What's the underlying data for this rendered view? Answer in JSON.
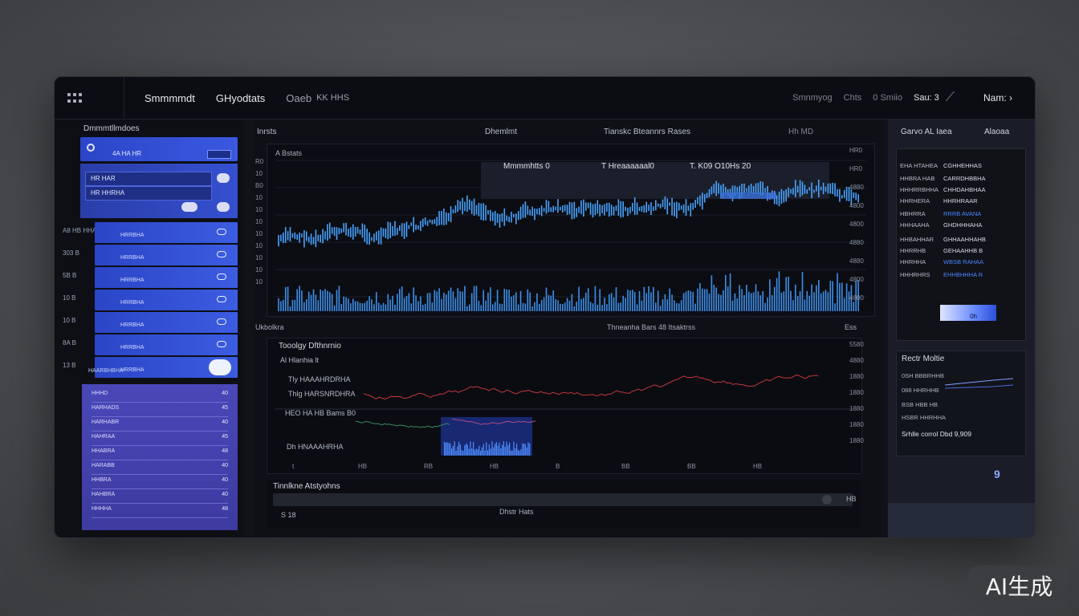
{
  "topbar": {
    "tabs": [
      "Smmmmdt",
      "GHyodtats",
      "Oaeb"
    ],
    "tab_extra": "KK HHS",
    "right_items": [
      "Smnmyog",
      "Chts",
      "0 Smiio",
      "Sau: 3"
    ],
    "user": "Nam: ›"
  },
  "left_panel": {
    "title": "Dmmmtllmdoes",
    "header_text": "4A  HA HR",
    "sub_rows": [
      "HR  HAR",
      "HR  HHRHA"
    ],
    "rows": [
      {
        "num": "A8  HB  HHA"
      },
      {
        "num": "303  B"
      },
      {
        "num": "5B  B"
      },
      {
        "num": "10  B"
      },
      {
        "num": "10  B"
      },
      {
        "num": "8A  B"
      },
      {
        "num": "13  B"
      }
    ],
    "row_label": "HRRBHA",
    "footer": "HAARBHBHA",
    "list_items": [
      "HHHD",
      "HARHADS",
      "HARHABR",
      "HAHRAA",
      "HHABRA",
      "HARABB",
      "HHBRA",
      "HAHBRA",
      "HHHHA"
    ],
    "list_values": [
      "40",
      "45",
      "40",
      "45",
      "48",
      "40",
      "40",
      "40",
      "48"
    ]
  },
  "center": {
    "head_left": "Inrsts",
    "head_mid": "Dhemlmt",
    "head_right": "Tianskc  Bteannrs Rases",
    "head_badges": "Hh  MD",
    "chart_title": "A Bstats",
    "overlay_left": "Mmmmhtts  0",
    "overlay_mid": "T  Hreaaaaaal0",
    "overlay_right": "T. K09  O10Hs  20",
    "y_ticks": [
      "R0",
      "10",
      "B0",
      "10",
      "10",
      "10",
      "10",
      "10",
      "10",
      "10",
      "10"
    ],
    "y_ticks_right": [
      "HR0",
      "HR0",
      "4880",
      "4800",
      "4800",
      "4880",
      "4880",
      "4800",
      "4800"
    ],
    "section_left": "Ukbolkra",
    "section_mid": "Thneanha Bars  48  Itsaktrss",
    "section_right": "Ess",
    "chart2_title": "Tooolgy Dfthnrnio",
    "chart2_labels": [
      "Al  Hlanhia  lt",
      "Tly HAAAHRDRHA",
      "Thlg HARSNRDHRA",
      "HEO  HA  HB  Bams  B0",
      "Dh HNAAAHRHA"
    ],
    "chart2_right": [
      "5580",
      "4880",
      "1880",
      "1880",
      "1880",
      "1880",
      "1880"
    ],
    "chart2_x": [
      "t",
      "HB",
      "RB",
      "HB",
      "B",
      "BB",
      "BB",
      "HB"
    ],
    "timeline_title": "Tinnlkne  Atstyohns",
    "timeline_left": "S  18",
    "timeline_mid": "Dhstr Hats",
    "timeline_right": "HB"
  },
  "right_panel": {
    "head_left": "Garvo AL  Iaea",
    "head_right": "Alaoaa",
    "lines": [
      {
        "k": "EHA  HTAHEA",
        "v": "CGHHEHHAS"
      },
      {
        "k": "HHBRA HAB",
        "v": "CARRDHBBHA"
      },
      {
        "k": "HHHRRBHHA",
        "v": "CHHDAHBHAA"
      },
      {
        "k": "HHRHERA",
        "v": "HHRHRAAR"
      },
      {
        "k": "HBHRRA",
        "v": "RRRB AVANA"
      },
      {
        "k": "HHHAAHA",
        "v": "GHDHHHAHA"
      },
      {
        "k": "HHBAHHAR",
        "v": "GHHAAHHAHB"
      },
      {
        "k": "HHRRHB",
        "v": "GEHAAHHB B"
      },
      {
        "k": "HHRHHA",
        "v": "WBSB RAHAA"
      },
      {
        "k": "HHHRHRS",
        "v": "EHHBHHHA R"
      }
    ],
    "gauge_value": "0h",
    "box2_title": "Rectr Moltie",
    "box2_lines": [
      "0SH   BBBRHHB",
      "088   HHRHHB",
      "BSB   HBB   HB",
      "HSBR  HHRHHA"
    ],
    "box2_footer": "Srhlle  corrol  Dbd  9,909",
    "help": "9"
  },
  "badge": "AI生成",
  "colors": {
    "accent": "#3b5bdb",
    "chart_blue": "#4aa3ff",
    "chart_red": "#c0383a",
    "chart_green": "#3a8a5a"
  }
}
